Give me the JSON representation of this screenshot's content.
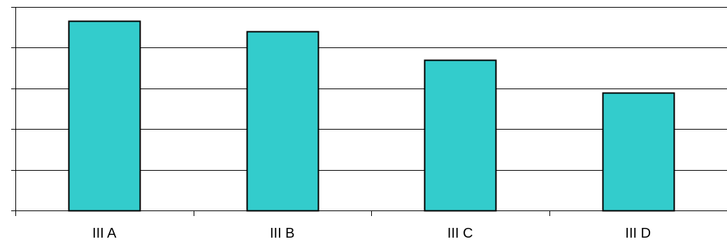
{
  "chart_data": {
    "type": "bar",
    "categories": [
      "III A",
      "III B",
      "III C",
      "III D"
    ],
    "values": [
      4.65,
      4.4,
      3.7,
      2.9
    ],
    "ylim": [
      0,
      5
    ],
    "grid": true,
    "y_tick_labels_shown": false,
    "colors": {
      "bar_fill": "#33cccc",
      "bar_stroke": "#000000",
      "gridline": "#000000",
      "axis": "#000000"
    }
  }
}
